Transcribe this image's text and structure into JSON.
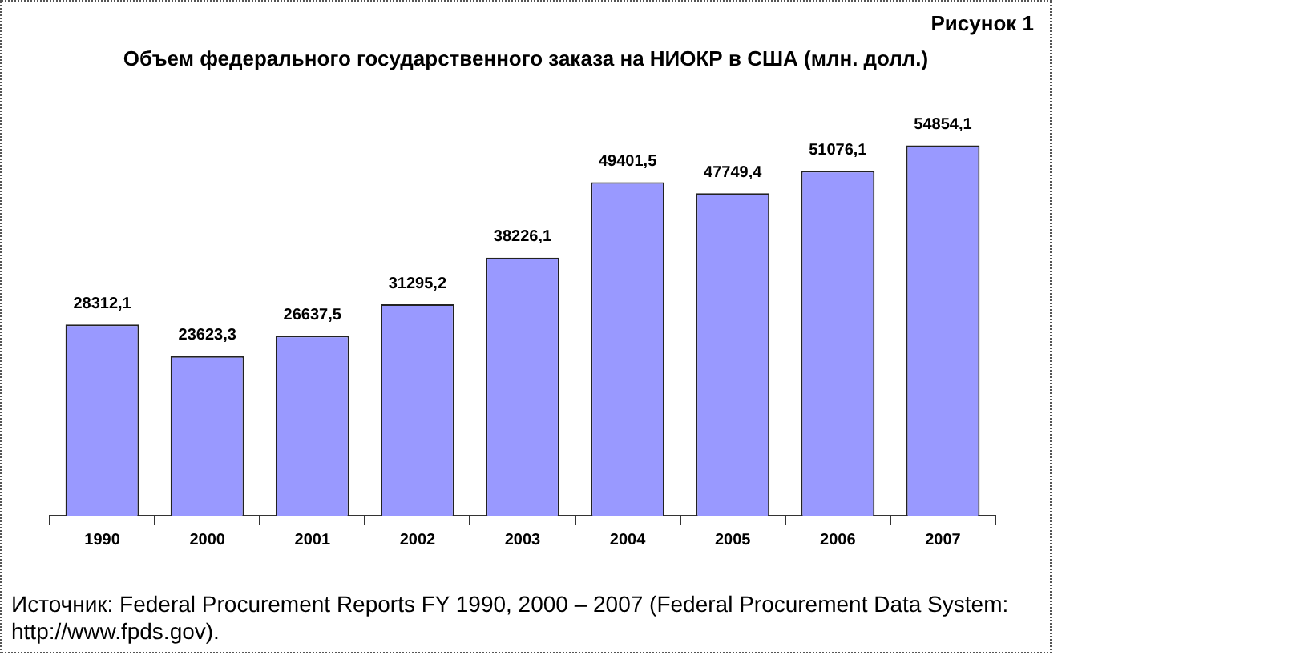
{
  "chart_data": {
    "type": "bar",
    "subtitle": "Рисунок 1",
    "title": "Объем федерального государственного заказа на НИОКР в США (млн. долл.)",
    "categories": [
      "1990",
      "2000",
      "2001",
      "2002",
      "2003",
      "2004",
      "2005",
      "2006",
      "2007"
    ],
    "values": [
      28312.1,
      23623.3,
      26637.5,
      31295.2,
      38226.1,
      49401.5,
      47749.4,
      51076.1,
      54854.1
    ],
    "value_labels": [
      "28312,1",
      "23623,3",
      "26637,5",
      "31295,2",
      "38226,1",
      "49401,5",
      "47749,4",
      "51076,1",
      "54854,1"
    ],
    "color": "#9999ff",
    "grid": false,
    "legend": false,
    "tick_labels": "x",
    "annotations": [
      "Источник: Federal Procurement Reports FY 1990, 2000 – 2007 (Federal Procurement Data System: http://www.fpds.gov)."
    ]
  }
}
